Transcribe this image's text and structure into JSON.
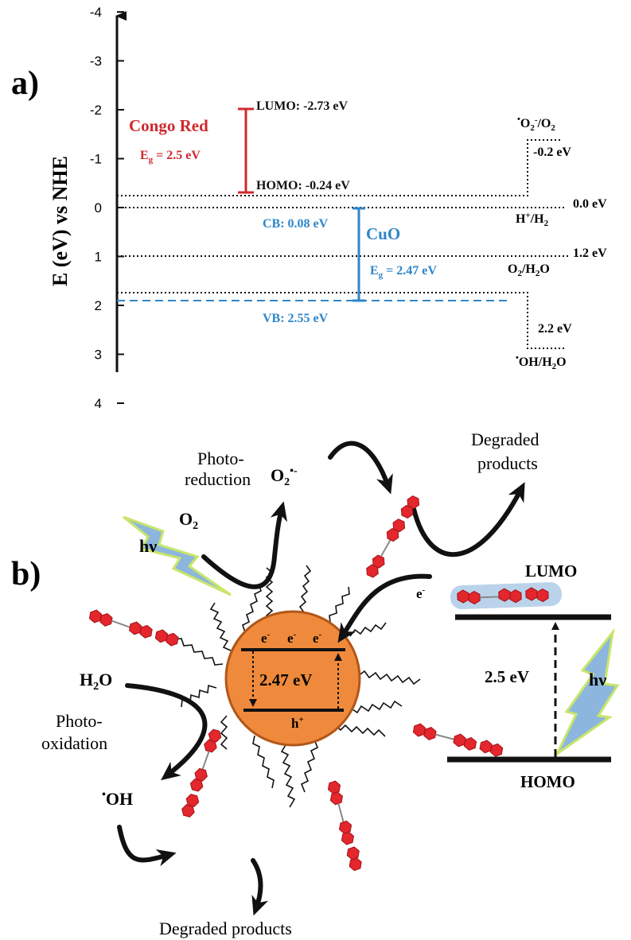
{
  "panel_a": {
    "label": "a)",
    "ylabel": "E (eV) vs NHE",
    "ticks": [
      "-4",
      "-3",
      "-2",
      "-1",
      "0",
      "1",
      "2",
      "3",
      "4"
    ],
    "congo_red": {
      "name": "Congo Red",
      "eg_main": "E",
      "eg_sub": "g",
      "eg_value": " = 2.5 eV",
      "lumo": "LUMO: -2.73 eV",
      "homo": "HOMO: -0.24 eV"
    },
    "cuo": {
      "name": "CuO",
      "cb": "CB: 0.08 eV",
      "vb": "VB: 2.55 eV",
      "eg_main": "E",
      "eg_sub": "g",
      "eg_value": " = 2.47 eV"
    },
    "redox": {
      "o2_radical_main": "O",
      "o2_radical_sub": "2",
      "o2_radical_sup": "-",
      "o2_radical_rest": "/O",
      "o2_radical_rest_sub": "2",
      "o2_value": "-0.2 eV",
      "h_value": "0.0 eV",
      "h_main": "H",
      "h_sup": "+",
      "h_rest": "/H",
      "h_rest_sub": "2",
      "o2h2o_value": "1.2 eV",
      "o2h2o_main": "O",
      "o2h2o_sub": "2",
      "o2h2o_rest": "/H",
      "o2h2o_rest_sub": "2",
      "o2h2o_end": "O",
      "oh_value": "2.2 eV",
      "oh_main": "OH/H",
      "oh_sub": "2",
      "oh_end": "O"
    },
    "colors": {
      "congo": "#d0282e",
      "cuo": "#2e86c8",
      "axis": "#111111"
    }
  },
  "panel_b": {
    "label": "b)",
    "photo_reduction_1": "Photo-",
    "photo_reduction_2": "reduction",
    "o2_main": "O",
    "o2_sub": "2",
    "o2rad_main": "O",
    "o2rad_sub": "2",
    "o2rad_sup": "•-",
    "degraded_top_1": "Degraded",
    "degraded_top_2": "products",
    "hv_left": "hν",
    "hv_right": "hν",
    "lumo": "LUMO",
    "homo": "HOMO",
    "electron": "e",
    "electron_sup": "-",
    "particle_electrons": [
      "e",
      "e",
      "e"
    ],
    "particle_electron_sup": "-",
    "particle_gap": "2.47 eV",
    "particle_hole": "h",
    "particle_hole_sup": "+",
    "dye_gap": "2.5 eV",
    "h2o_main": "H",
    "h2o_sub": "2",
    "h2o_end": "O",
    "photo_oxidation_1": "Photo-",
    "photo_oxidation_2": "oxidation",
    "oh_radical": "OH",
    "degraded_bottom": "Degraded products",
    "colors": {
      "particle_fill": "#ef8a3c",
      "particle_stroke": "#b25618",
      "bead": "#e4262d",
      "bolt": "#8cb6dd",
      "bolt_glow": "#c8e66a"
    }
  }
}
